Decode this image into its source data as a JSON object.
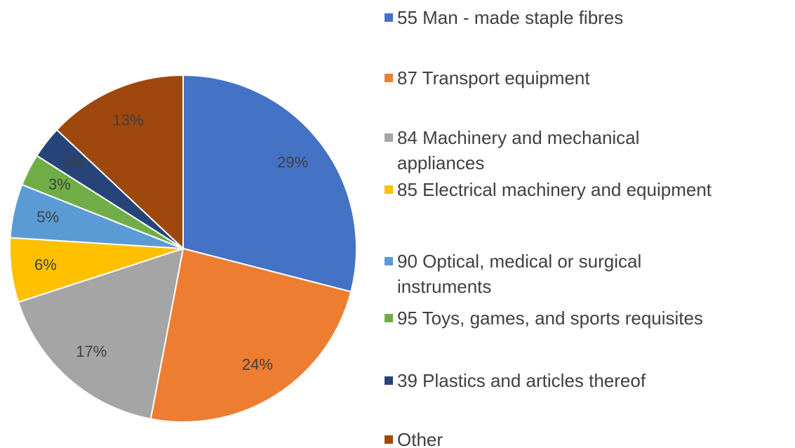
{
  "chart_data": {
    "type": "pie",
    "categories": [
      "55 Man - made staple fibres",
      "87 Transport equipment",
      "84 Machinery and mechanical appliances",
      "85 Electrical machinery and equipment",
      "90 Optical, medical or surgical instruments",
      "95 Toys, games, and sports requisites",
      "39 Plastics and articles thereof",
      "Other"
    ],
    "values": [
      29,
      24,
      17,
      6,
      5,
      3,
      3,
      13
    ],
    "value_labels": [
      "29%",
      "24%",
      "17%",
      "6%",
      "5%",
      "3%",
      "3%",
      "13%"
    ],
    "colors": [
      "#4472c4",
      "#ed7d31",
      "#a5a5a5",
      "#ffc000",
      "#5b9bd5",
      "#70ad47",
      "#264478",
      "#9e480e"
    ],
    "legend": "right"
  }
}
